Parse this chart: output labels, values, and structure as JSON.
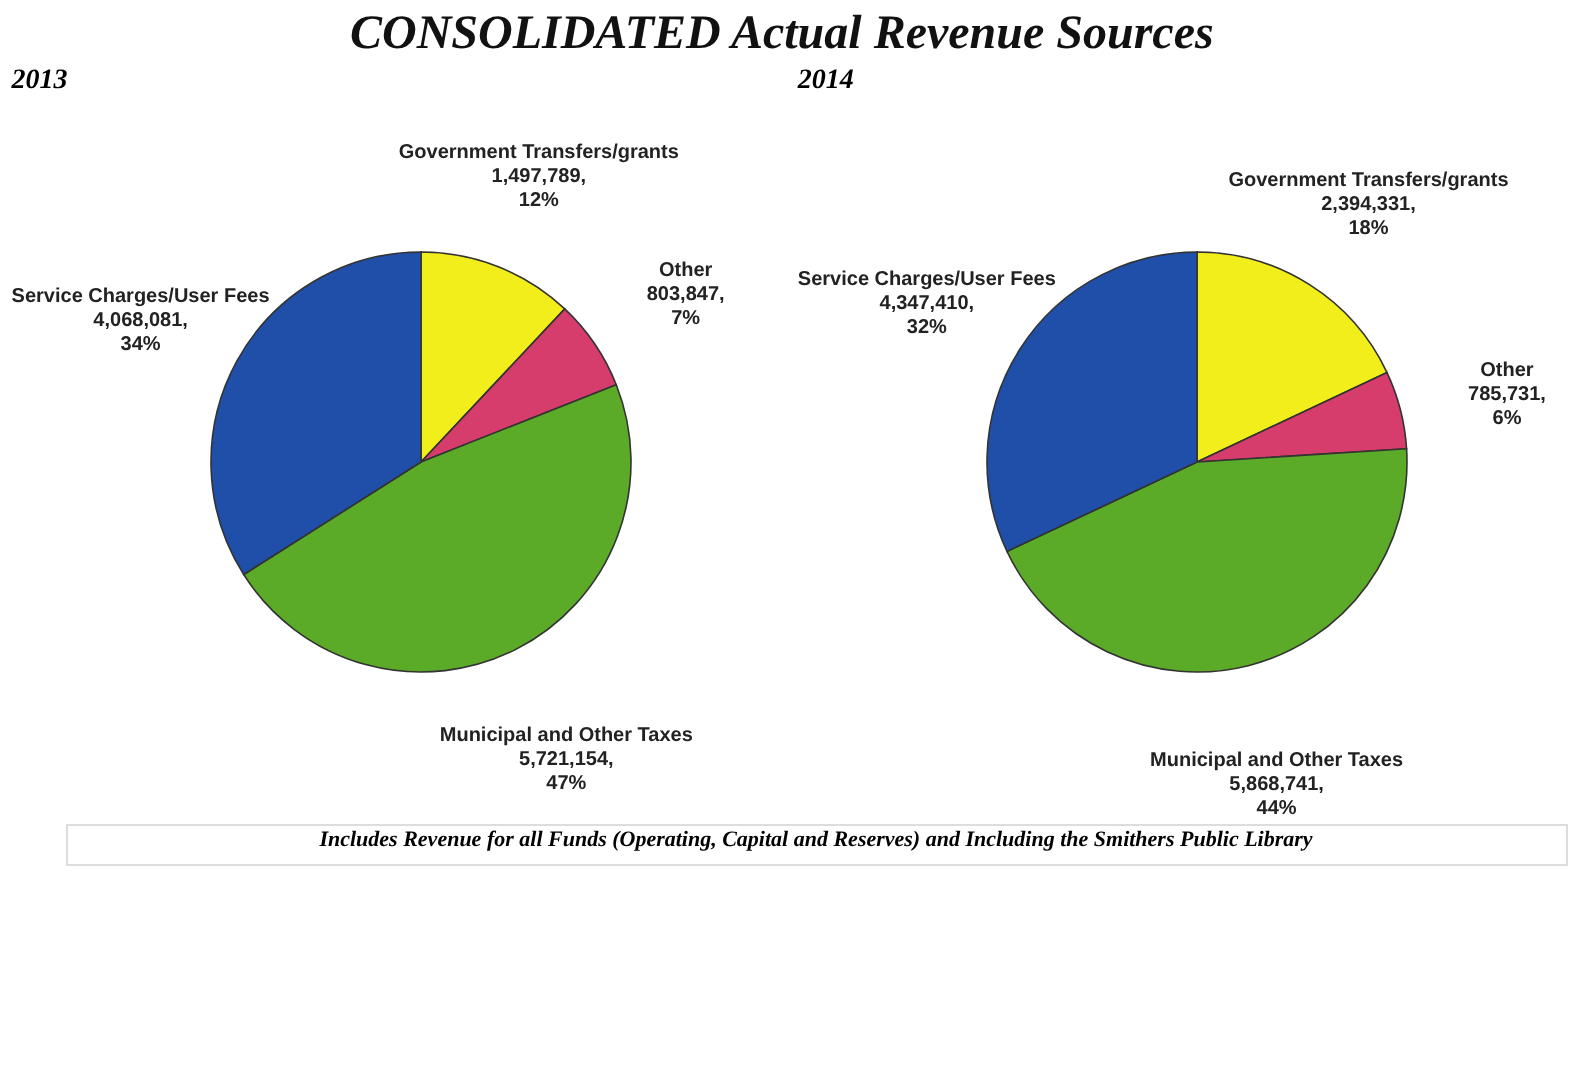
{
  "chart_data": [
    {
      "type": "pie",
      "title": "CONSOLIDATED Actual Revenue Sources",
      "subtitle": "2013",
      "categories": [
        "Government Transfers/grants",
        "Other",
        "Municipal and Other Taxes",
        "Service Charges/User Fees"
      ],
      "values": [
        12,
        7,
        47,
        34
      ],
      "value_labels": [
        "1,497,789, 12%",
        "803,847, 7%",
        "5,721,154, 47%",
        "4,068,081, 34%"
      ],
      "colors": [
        "#f2ee1c",
        "#d63c6c",
        "#5bab28",
        "#1f4fa8"
      ]
    },
    {
      "type": "pie",
      "subtitle": "2014",
      "categories": [
        "Government Transfers/grants",
        "Other",
        "Municipal and Other Taxes",
        "Service Charges/User Fees"
      ],
      "values": [
        18,
        6,
        44,
        32
      ],
      "value_labels": [
        "2,394,331, 18%",
        "785,731, 6%",
        "5,868,741, 44%",
        "4,347,410, 32%"
      ],
      "colors": [
        "#f2ee1c",
        "#d63c6c",
        "#5bab28",
        "#1f4fa8"
      ],
      "annotations": [
        "Includes Revenue for all Funds (Operating, Capital and Reserves) and Including the Smithers Public Library"
      ]
    }
  ]
}
